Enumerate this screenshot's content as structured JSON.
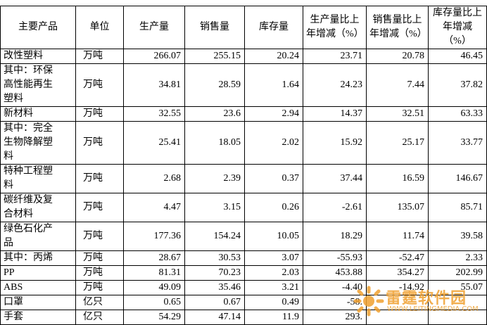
{
  "table": {
    "header": [
      "主要产品",
      "单位",
      "生产量",
      "销售量",
      "库存量",
      "生产量比上年增减（%）",
      "销售量比上年增减（%）",
      "库存量比上年增减（%）"
    ],
    "rows": [
      [
        "改性塑料",
        "万吨",
        "266.07",
        "255.15",
        "20.24",
        "23.71",
        "20.78",
        "46.45"
      ],
      [
        "其中：环保高性能再生塑料",
        "万吨",
        "34.81",
        "28.59",
        "1.64",
        "24.23",
        "7.44",
        "37.82"
      ],
      [
        "新材料",
        "万吨",
        "32.55",
        "23.6",
        "2.94",
        "14.37",
        "32.51",
        "63.33"
      ],
      [
        "其中：完全生物降解塑料",
        "万吨",
        "25.41",
        "18.05",
        "2.02",
        "15.92",
        "25.17",
        "33.77"
      ],
      [
        "特种工程塑料",
        "万吨",
        "2.68",
        "2.39",
        "0.37",
        "37.44",
        "16.59",
        "146.67"
      ],
      [
        "碳纤维及复合材料",
        "万吨",
        "4.47",
        "3.15",
        "0.26",
        "-2.61",
        "135.07",
        "85.71"
      ],
      [
        "绿色石化产品",
        "万吨",
        "177.36",
        "154.24",
        "10.05",
        "18.29",
        "11.74",
        "39.58"
      ],
      [
        "其中：丙烯",
        "万吨",
        "28.67",
        "30.53",
        "3.07",
        "-55.93",
        "-52.47",
        "2.33"
      ],
      [
        "PP",
        "万吨",
        "81.31",
        "70.23",
        "2.03",
        "453.88",
        "354.27",
        "202.99"
      ],
      [
        "ABS",
        "万吨",
        "49.09",
        "35.46",
        "3.21",
        "-4.40",
        "-14.92",
        "55.07"
      ],
      [
        "口罩",
        "亿只",
        "0.65",
        "0.67",
        "0.49",
        "-58.",
        "",
        ""
      ],
      [
        "手套",
        "亿只",
        "54.29",
        "47.14",
        "11.9",
        "293.",
        "",
        ""
      ]
    ]
  },
  "watermark": {
    "title": "雷霆软件园",
    "url": "WWW.LEITINGMEDIA.COM"
  }
}
